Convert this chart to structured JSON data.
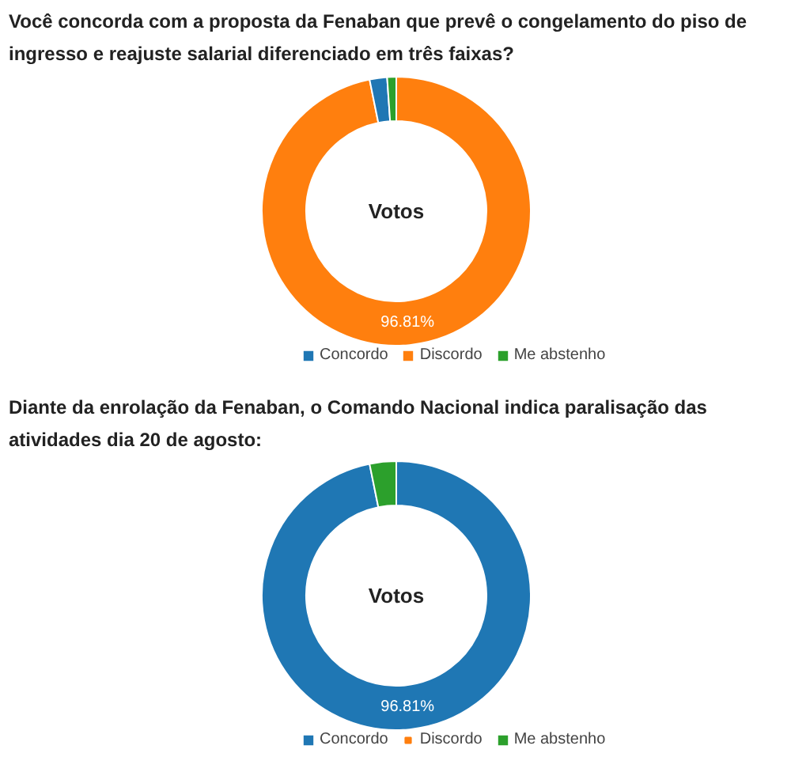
{
  "chart_data": [
    {
      "type": "donut",
      "title": "Você concorda com a proposta da Fenaban que prevê o congelamento do piso de ingresso e reajuste salarial diferenciado em três faixas?",
      "categories": [
        "Concordo",
        "Discordo",
        "Me abstenho"
      ],
      "values": [
        2.1,
        96.81,
        1.09
      ],
      "colors": [
        "#1f77b4",
        "#ff7f0e",
        "#2ca02c"
      ],
      "value_labels": [
        null,
        "96.81%",
        null
      ],
      "annotations": [
        "Votos"
      ],
      "legend": "bottom"
    },
    {
      "type": "donut",
      "title": "Diante da enrolação da Fenaban, o Comando Nacional indica paralisação das atividades dia 20 de agosto:",
      "categories": [
        "Concordo",
        "Discordo",
        "Me abstenho"
      ],
      "values": [
        96.81,
        0,
        3.19
      ],
      "colors": [
        "#1f77b4",
        "#ff7f0e",
        "#2ca02c"
      ],
      "value_labels": [
        "96.81%",
        null,
        null
      ],
      "annotations": [
        "Votos"
      ],
      "legend": "bottom"
    }
  ]
}
